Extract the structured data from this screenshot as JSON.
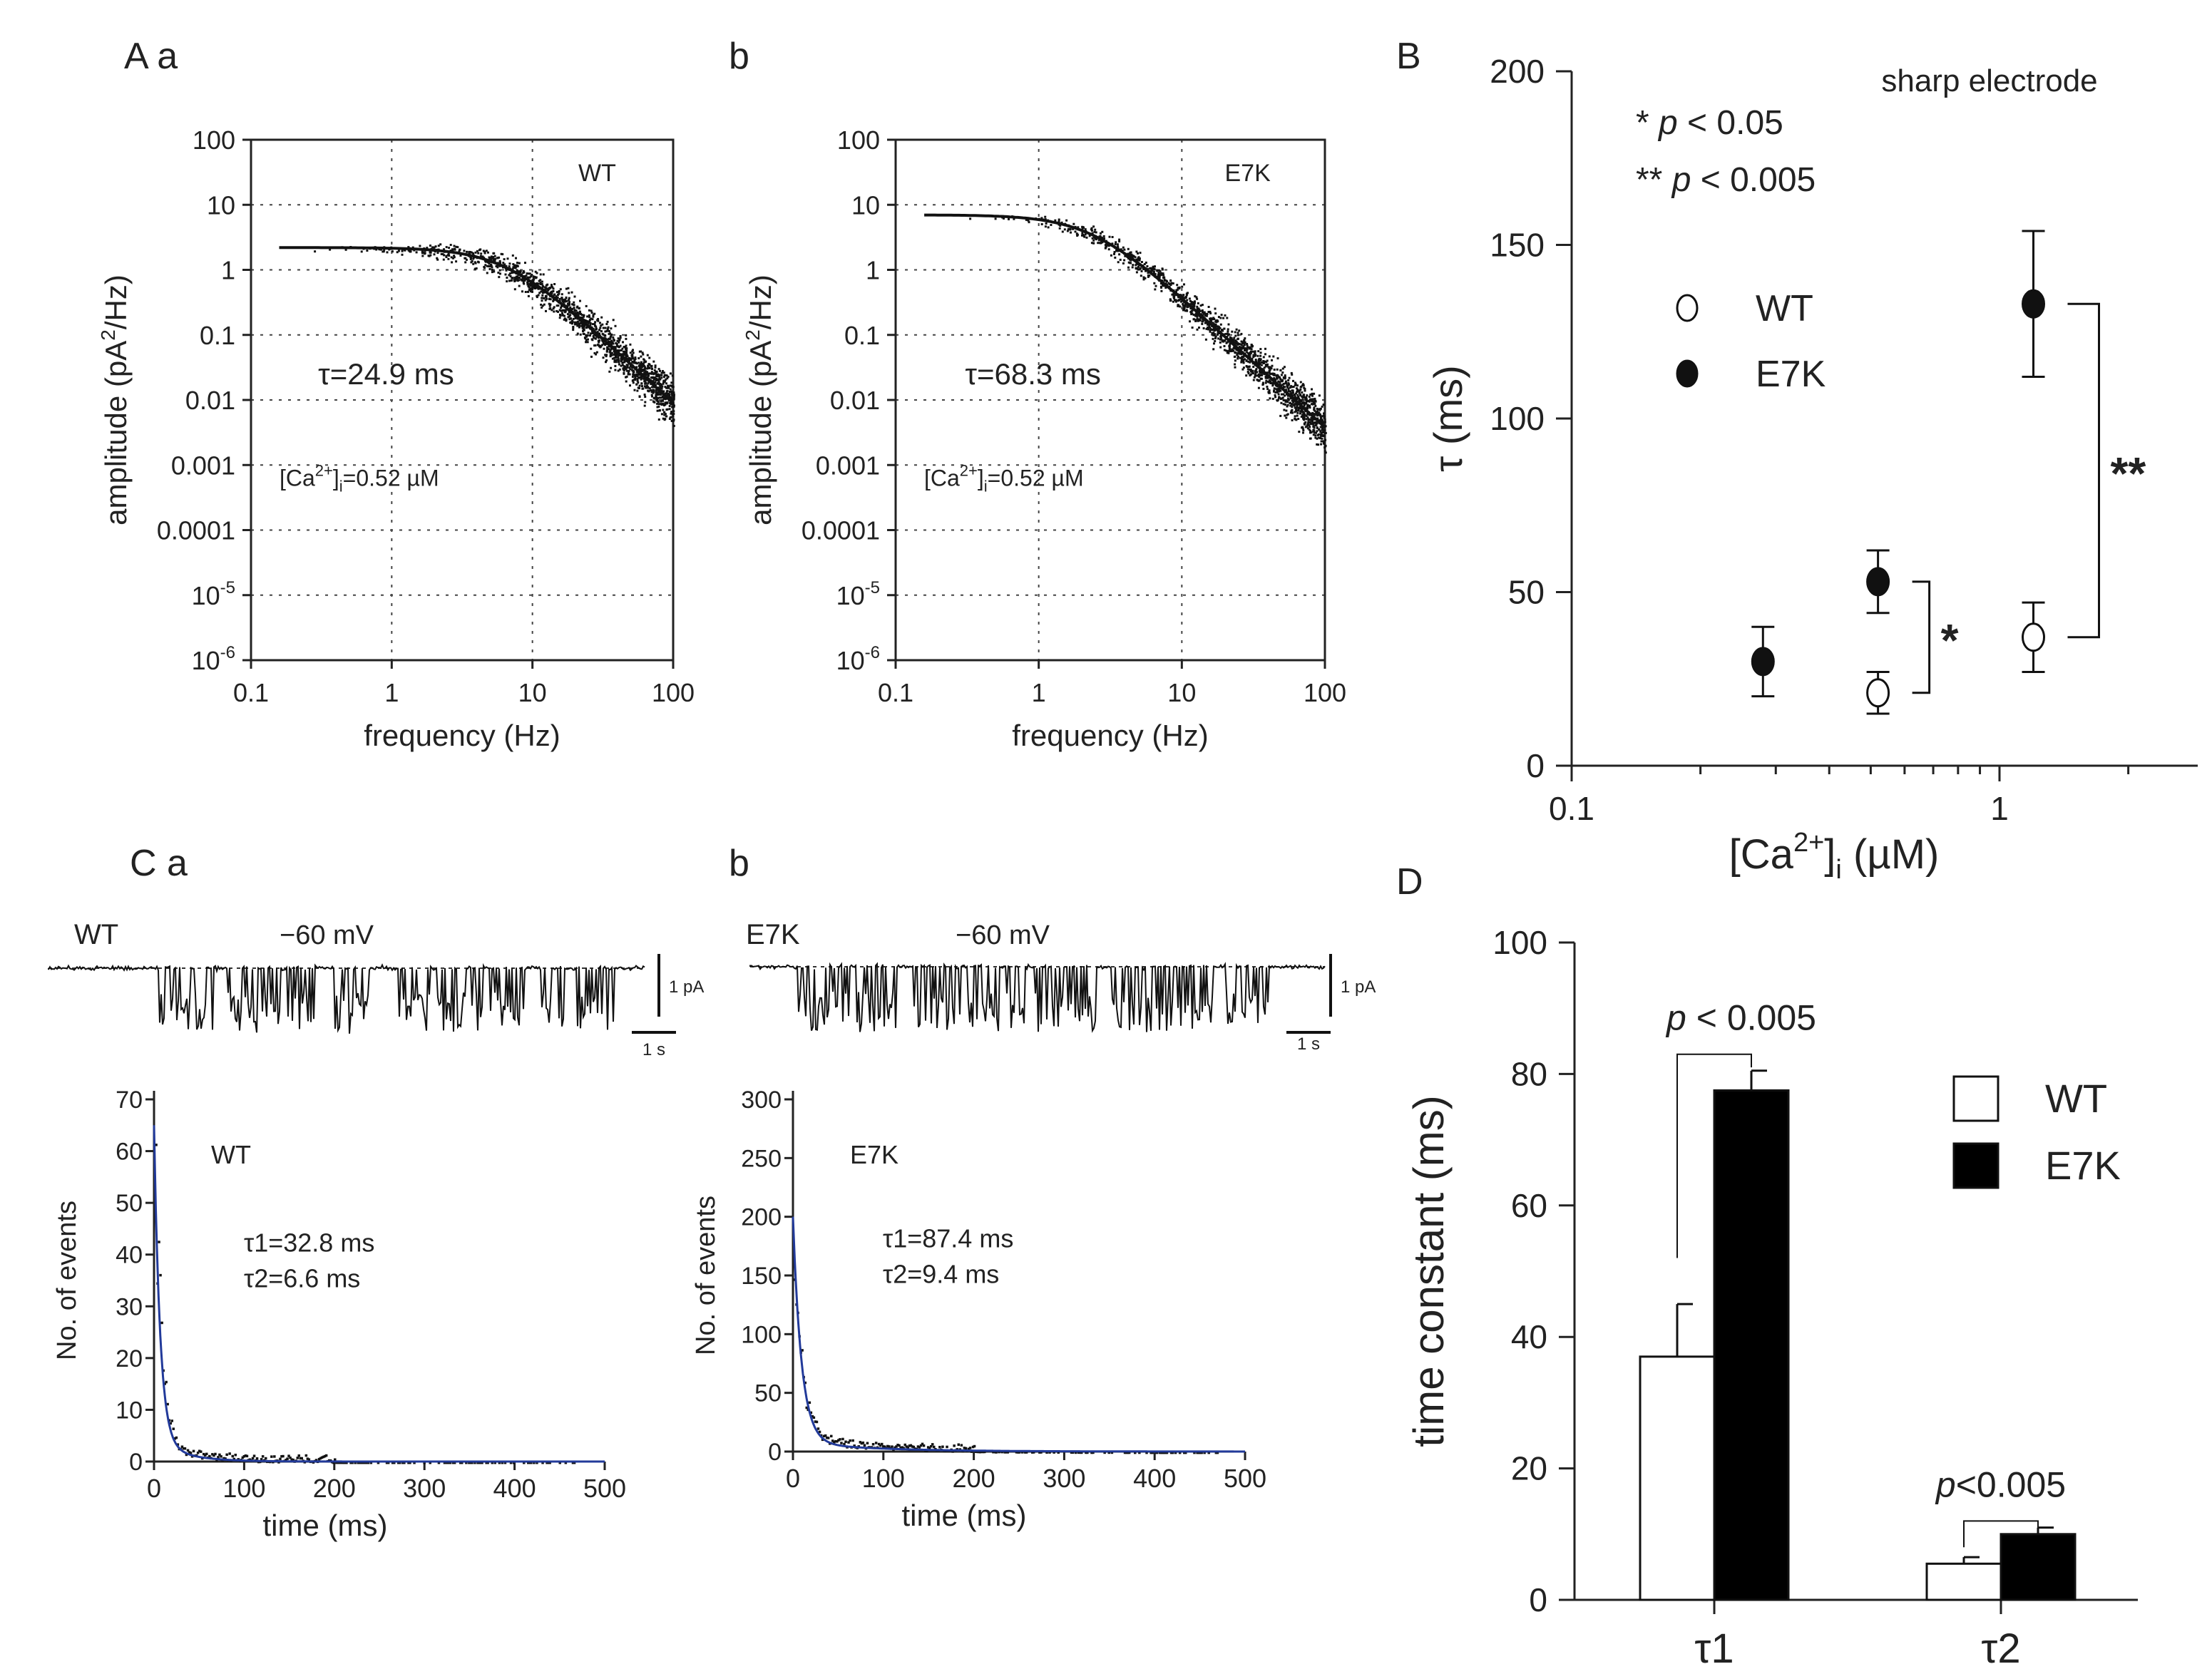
{
  "panel_labels": {
    "Aa": "A a",
    "Ab": "b",
    "B": "B",
    "Ca": "C a",
    "Cb": "b",
    "D": "D"
  },
  "psd_axis": {
    "xlabel": "frequency (Hz)",
    "xticks": [
      "0.1",
      "1",
      "10",
      "100"
    ],
    "ylabel_base": "amplitude (pA",
    "ylabel_sup": "2",
    "ylabel_tail": "/Hz)",
    "yticks": [
      {
        "base": "100",
        "exp": ""
      },
      {
        "base": "10",
        "exp": ""
      },
      {
        "base": "1",
        "exp": ""
      },
      {
        "base": "0.1",
        "exp": ""
      },
      {
        "base": "0.01",
        "exp": ""
      },
      {
        "base": "0.001",
        "exp": ""
      },
      {
        "base": "0.0001",
        "exp": ""
      },
      {
        "base": "10",
        "exp": "-5"
      },
      {
        "base": "10",
        "exp": "-6"
      }
    ]
  },
  "ca_label": {
    "base": "[Ca",
    "sup": "2+",
    "mid": "]",
    "sub": "i",
    "value": "=0.52 µM"
  },
  "traces": {
    "voltage": "−60 mV",
    "wt_label": "WT",
    "e7k_label": "E7K",
    "scale_current": "1 pA",
    "scale_time": "1 s"
  },
  "hist_axis": {
    "xlabel": "time (ms)",
    "ylabel": "No. of events",
    "xticks": [
      "0",
      "100",
      "200",
      "300",
      "400",
      "500"
    ]
  },
  "chart_data": [
    {
      "id": "Aa",
      "type": "scatter",
      "title": "",
      "legend": "WT",
      "xlabel": "frequency (Hz)",
      "ylabel": "amplitude (pA2/Hz)",
      "xscale": "log",
      "yscale": "log",
      "xlim": [
        0.1,
        100
      ],
      "ylim": [
        1e-06,
        100
      ],
      "fit": {
        "model": "lorentzian",
        "S0": 2.2,
        "tau_ms": 24.9
      },
      "annotation": "τ=24.9 ms"
    },
    {
      "id": "Ab",
      "type": "scatter",
      "title": "",
      "legend": "E7K",
      "xlabel": "frequency (Hz)",
      "ylabel": "amplitude (pA2/Hz)",
      "xscale": "log",
      "yscale": "log",
      "xlim": [
        0.1,
        100
      ],
      "ylim": [
        1e-06,
        100
      ],
      "fit": {
        "model": "lorentzian",
        "S0": 7,
        "tau_ms": 68.3
      },
      "annotation": "τ=68.3 ms"
    },
    {
      "id": "B",
      "type": "scatter",
      "title": "sharp electrode",
      "xlabel_base": "[Ca",
      "xlabel_sup": "2+",
      "xlabel_mid": "]",
      "xlabel_sub": "i",
      "xlabel_tail": " (µM)",
      "ylabel": "τ (ms)",
      "xscale": "log",
      "xlim": [
        0.1,
        2.5
      ],
      "ylim": [
        0,
        200
      ],
      "xticks": [
        "0.1",
        "1"
      ],
      "yticks": [
        "0",
        "50",
        "100",
        "150",
        "200"
      ],
      "series": [
        {
          "name": "WT",
          "marker": "open-circle",
          "points": [
            {
              "x": 0.52,
              "y": 21,
              "err": 6
            },
            {
              "x": 1.2,
              "y": 37,
              "err": 10
            }
          ]
        },
        {
          "name": "E7K",
          "marker": "filled-circle",
          "points": [
            {
              "x": 0.28,
              "y": 30,
              "err": 10
            },
            {
              "x": 0.52,
              "y": 53,
              "err": 9
            },
            {
              "x": 1.2,
              "y": 133,
              "err": 21
            }
          ]
        }
      ],
      "significance_legend": [
        {
          "stars": "*",
          "p": "p",
          "rest": " < 0.05"
        },
        {
          "stars": "**",
          "p": "p",
          "rest": " < 0.005"
        }
      ],
      "brackets": [
        {
          "x": 0.52,
          "label": "*"
        },
        {
          "x": 1.2,
          "label": "**"
        }
      ]
    },
    {
      "id": "Ca",
      "type": "scatter",
      "legend": "WT",
      "xlabel": "time (ms)",
      "ylabel": "No. of events",
      "xlim": [
        0,
        500
      ],
      "ylim": [
        0,
        70
      ],
      "yticks": [
        "0",
        "10",
        "20",
        "30",
        "40",
        "50",
        "60",
        "70"
      ],
      "fit": {
        "model": "bi-exponential",
        "A1": 4,
        "tau1_ms": 32.8,
        "A2": 61,
        "tau2_ms": 6.6
      },
      "annotation1": "τ1=32.8 ms",
      "annotation2": "τ2=6.6 ms"
    },
    {
      "id": "Cb",
      "type": "scatter",
      "legend": "E7K",
      "xlabel": "time (ms)",
      "ylabel": "No. of events",
      "xlim": [
        0,
        500
      ],
      "ylim": [
        0,
        300
      ],
      "yticks": [
        "0",
        "50",
        "100",
        "150",
        "200",
        "250",
        "300"
      ],
      "fit": {
        "model": "bi-exponential",
        "A1": 8,
        "tau1_ms": 87.4,
        "A2": 192,
        "tau2_ms": 9.4
      },
      "annotation1": "τ1=87.4 ms",
      "annotation2": "τ2=9.4 ms"
    },
    {
      "id": "D",
      "type": "bar",
      "categories": [
        "τ1",
        "τ2"
      ],
      "ylabel": "time constant (ms)",
      "ylim": [
        0,
        100
      ],
      "yticks": [
        "0",
        "20",
        "40",
        "60",
        "80",
        "100"
      ],
      "series": [
        {
          "name": "WT",
          "fill": "#ffffff",
          "values": [
            37,
            5.5
          ],
          "errors": [
            8,
            1
          ]
        },
        {
          "name": "E7K",
          "fill": "#000000",
          "values": [
            77.5,
            10
          ],
          "errors": [
            3,
            1
          ]
        }
      ],
      "significance": [
        {
          "category": "τ1",
          "p": "p",
          "rest": " < 0.005"
        },
        {
          "category": "τ2",
          "p": "p",
          "rest": "<0.005"
        }
      ]
    }
  ]
}
